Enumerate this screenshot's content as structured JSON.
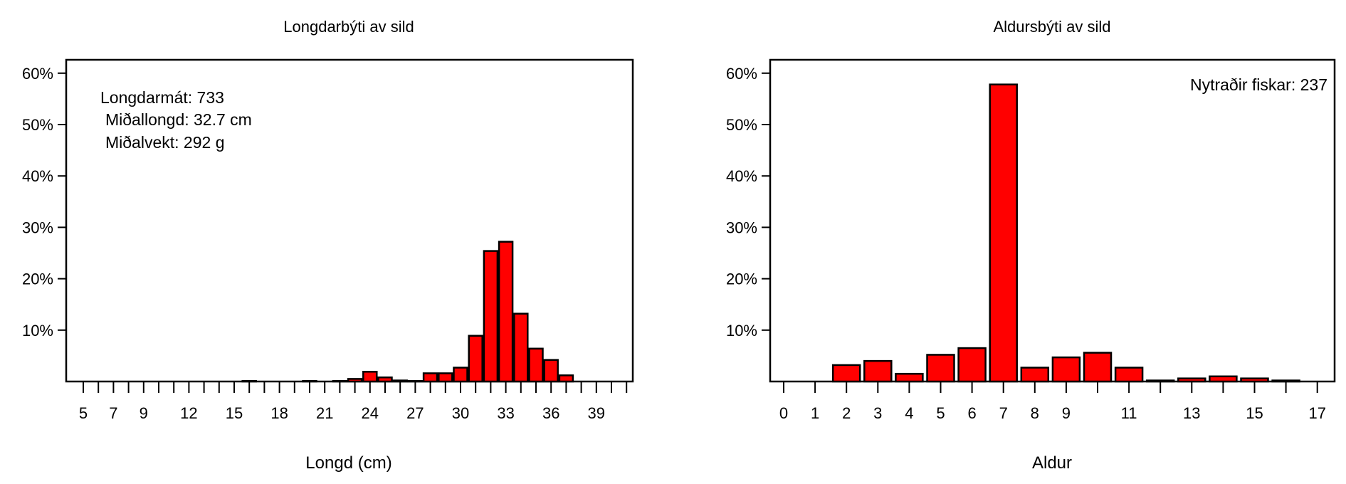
{
  "chart_data": [
    {
      "type": "bar",
      "title": "Longdarbýti av sild",
      "xlabel": "Longd (cm)",
      "ylabel": "",
      "ylim": [
        0,
        0.6
      ],
      "yticks": [
        "10%",
        "20%",
        "30%",
        "40%",
        "50%",
        "60%"
      ],
      "ytick_values": [
        0.1,
        0.2,
        0.3,
        0.4,
        0.5,
        0.6
      ],
      "xticks_labeled": [
        "5",
        "7",
        "9",
        "12",
        "15",
        "18",
        "21",
        "24",
        "27",
        "30",
        "33",
        "36",
        "39"
      ],
      "categories": [
        5,
        6,
        7,
        8,
        9,
        10,
        11,
        12,
        13,
        14,
        15,
        16,
        17,
        18,
        19,
        20,
        21,
        22,
        23,
        24,
        25,
        26,
        27,
        28,
        29,
        30,
        31,
        32,
        33,
        34,
        35,
        36,
        37,
        38,
        39,
        40,
        41
      ],
      "values": [
        0,
        0,
        0,
        0,
        0,
        0,
        0,
        0,
        0,
        0,
        0,
        0.001,
        0,
        0,
        0,
        0.001,
        0,
        0.001,
        0.005,
        0.019,
        0.008,
        0.002,
        0.001,
        0.016,
        0.016,
        0.027,
        0.089,
        0.254,
        0.272,
        0.132,
        0.064,
        0.042,
        0.012,
        0,
        0,
        0,
        0
      ],
      "annotations": [
        "Longdarmát: 733",
        "Miðallongd: 32.7 cm",
        "Miðalvekt: 292 g"
      ],
      "bar_color": "#ff0000",
      "grid": false
    },
    {
      "type": "bar",
      "title": "Aldursbýti av sild",
      "xlabel": "Aldur",
      "ylabel": "",
      "ylim": [
        0,
        0.6
      ],
      "yticks": [
        "10%",
        "20%",
        "30%",
        "40%",
        "50%",
        "60%"
      ],
      "ytick_values": [
        0.1,
        0.2,
        0.3,
        0.4,
        0.5,
        0.6
      ],
      "xticks_labeled": [
        "0",
        "1",
        "2",
        "3",
        "4",
        "5",
        "6",
        "7",
        "8",
        "9",
        "11",
        "13",
        "15",
        "17"
      ],
      "categories": [
        0,
        1,
        2,
        3,
        4,
        5,
        6,
        7,
        8,
        9,
        10,
        11,
        12,
        13,
        14,
        15,
        16,
        17
      ],
      "values": [
        0,
        0,
        0.032,
        0.04,
        0.015,
        0.052,
        0.065,
        0.578,
        0.027,
        0.047,
        0.056,
        0.027,
        0.002,
        0.006,
        0.01,
        0.006,
        0.002,
        0
      ],
      "annotations": [
        "Nytraðir fiskar: 237"
      ],
      "bar_color": "#ff0000",
      "grid": false
    }
  ]
}
